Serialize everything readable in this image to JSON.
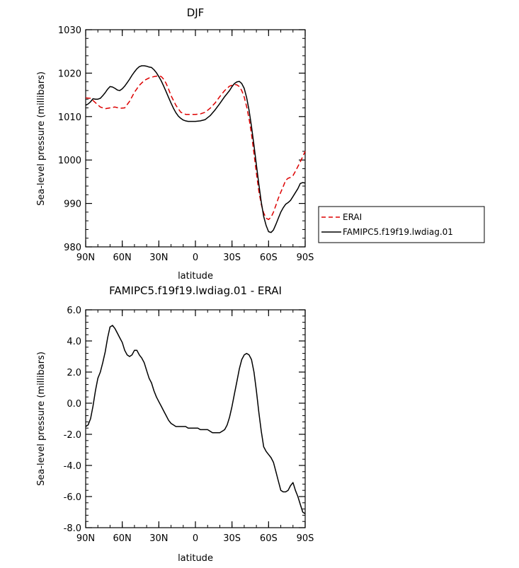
{
  "chart_data": [
    {
      "type": "line",
      "title": "DJF",
      "xlabel": "latitude",
      "ylabel": "Sea-level pressure (millibars)",
      "xlim": [
        90,
        -90
      ],
      "ylim": [
        980,
        1030
      ],
      "x_ticks": [
        90,
        60,
        30,
        0,
        -30,
        -60,
        -90
      ],
      "x_tick_labels": [
        "90N",
        "60N",
        "30N",
        "0",
        "30S",
        "60S",
        "90S"
      ],
      "y_ticks": [
        980,
        990,
        1000,
        1010,
        1020,
        1030
      ],
      "y_tick_labels": [
        "980",
        "990",
        "1000",
        "1010",
        "1020",
        "1030"
      ],
      "legend_position": "right",
      "series": [
        {
          "name": "ERAI",
          "color": "#dd0000",
          "dash": "dashed",
          "x": [
            90,
            86,
            82,
            78,
            74,
            70,
            66,
            62,
            58,
            54,
            50,
            46,
            42,
            38,
            34,
            30,
            28,
            26,
            24,
            22,
            20,
            16,
            12,
            8,
            4,
            0,
            -4,
            -8,
            -12,
            -16,
            -20,
            -24,
            -28,
            -32,
            -34,
            -36,
            -38,
            -40,
            -42,
            -44,
            -46,
            -48,
            -50,
            -52,
            -54,
            -56,
            -58,
            -60,
            -62,
            -64,
            -66,
            -68,
            -70,
            -72,
            -74,
            -76,
            -78,
            -80,
            -82,
            -84,
            -86,
            -88,
            -90
          ],
          "y": [
            1014.3,
            1014.2,
            1013.2,
            1012.2,
            1011.8,
            1012.0,
            1012.2,
            1011.9,
            1012.0,
            1013.5,
            1015.6,
            1017.2,
            1018.3,
            1018.9,
            1019.2,
            1019.4,
            1019.2,
            1018.6,
            1017.6,
            1016.3,
            1014.8,
            1012.6,
            1011.0,
            1010.5,
            1010.5,
            1010.5,
            1010.6,
            1011.0,
            1011.9,
            1013.1,
            1014.6,
            1016.0,
            1017.0,
            1017.4,
            1017.3,
            1016.9,
            1016.0,
            1014.5,
            1012.3,
            1009.5,
            1006.0,
            1001.5,
            997.0,
            992.8,
            989.8,
            987.8,
            986.6,
            986.3,
            986.8,
            988.0,
            989.6,
            991.2,
            992.6,
            993.9,
            995.3,
            995.8,
            996.0,
            996.4,
            997.4,
            998.5,
            999.6,
            1000.8,
            1002.0
          ]
        },
        {
          "name": "FAMIPC5.f19f19.lwdiag.01",
          "color": "#000000",
          "dash": "solid",
          "x": [
            90,
            88,
            86,
            84,
            82,
            80,
            78,
            76,
            74,
            72,
            70,
            68,
            66,
            64,
            62,
            60,
            58,
            56,
            54,
            52,
            50,
            48,
            46,
            44,
            42,
            40,
            38,
            36,
            34,
            32,
            30,
            28,
            26,
            24,
            22,
            20,
            18,
            16,
            14,
            12,
            10,
            8,
            6,
            4,
            2,
            0,
            -4,
            -8,
            -12,
            -16,
            -20,
            -24,
            -28,
            -30,
            -32,
            -34,
            -36,
            -38,
            -40,
            -42,
            -44,
            -46,
            -48,
            -50,
            -52,
            -54,
            -56,
            -58,
            -60,
            -62,
            -64,
            -66,
            -68,
            -70,
            -72,
            -74,
            -76,
            -78,
            -80,
            -82,
            -84,
            -86,
            -88,
            -90
          ],
          "y": [
            1012.6,
            1012.9,
            1013.4,
            1014.1,
            1014.0,
            1014.0,
            1014.2,
            1014.8,
            1015.5,
            1016.3,
            1016.9,
            1016.8,
            1016.5,
            1016.1,
            1016.0,
            1016.4,
            1017.0,
            1017.8,
            1018.6,
            1019.5,
            1020.3,
            1021.0,
            1021.5,
            1021.7,
            1021.7,
            1021.6,
            1021.4,
            1021.3,
            1020.8,
            1020.1,
            1019.2,
            1018.2,
            1017.0,
            1015.7,
            1014.4,
            1013.1,
            1011.9,
            1010.9,
            1010.1,
            1009.6,
            1009.2,
            1009.0,
            1008.9,
            1008.9,
            1008.9,
            1008.9,
            1009.0,
            1009.3,
            1010.2,
            1011.5,
            1013.0,
            1014.6,
            1016.0,
            1016.9,
            1017.6,
            1018.0,
            1018.1,
            1017.6,
            1016.5,
            1014.4,
            1011.4,
            1007.7,
            1003.4,
            998.9,
            994.4,
            990.3,
            987.0,
            984.9,
            983.5,
            983.3,
            983.9,
            985.2,
            986.6,
            988.0,
            989.0,
            989.8,
            990.2,
            990.7,
            991.6,
            992.5,
            993.4,
            994.6,
            994.8,
            994.7
          ]
        }
      ]
    },
    {
      "type": "line",
      "title": "FAMIPC5.f19f19.lwdiag.01 - ERAI",
      "xlabel": "latitude",
      "ylabel": "Sea-level pressure (millibars)",
      "xlim": [
        90,
        -90
      ],
      "ylim": [
        -8.0,
        6.0
      ],
      "x_ticks": [
        90,
        60,
        30,
        0,
        -30,
        -60,
        -90
      ],
      "x_tick_labels": [
        "90N",
        "60N",
        "30N",
        "0",
        "30S",
        "60S",
        "90S"
      ],
      "y_ticks": [
        -8,
        -6,
        -4,
        -2,
        0,
        2,
        4,
        6
      ],
      "y_tick_labels": [
        "-8.0",
        "-6.0",
        "-4.0",
        "-2.0",
        "0.0",
        "2.0",
        "4.0",
        "6.0"
      ],
      "series": [
        {
          "color": "#000000",
          "dash": "solid",
          "x": [
            90,
            88,
            86,
            84,
            82,
            80,
            78,
            76,
            74,
            72,
            70,
            68,
            66,
            64,
            62,
            60,
            58,
            56,
            54,
            52,
            50,
            48,
            46,
            44,
            42,
            40,
            38,
            36,
            34,
            32,
            30,
            28,
            26,
            24,
            22,
            20,
            18,
            16,
            14,
            12,
            10,
            8,
            6,
            4,
            2,
            0,
            -2,
            -4,
            -6,
            -8,
            -10,
            -12,
            -14,
            -16,
            -18,
            -20,
            -22,
            -24,
            -26,
            -28,
            -30,
            -32,
            -34,
            -36,
            -38,
            -40,
            -42,
            -44,
            -46,
            -48,
            -50,
            -52,
            -54,
            -56,
            -58,
            -60,
            -62,
            -64,
            -66,
            -68,
            -70,
            -72,
            -74,
            -76,
            -78,
            -80,
            -82,
            -84,
            -86,
            -88,
            -90
          ],
          "y": [
            -1.5,
            -1.4,
            -1.0,
            -0.2,
            0.8,
            1.6,
            2.0,
            2.6,
            3.3,
            4.2,
            4.9,
            5.0,
            4.8,
            4.5,
            4.2,
            3.9,
            3.4,
            3.1,
            3.0,
            3.1,
            3.4,
            3.4,
            3.1,
            2.9,
            2.6,
            2.1,
            1.6,
            1.3,
            0.8,
            0.4,
            0.1,
            -0.2,
            -0.5,
            -0.8,
            -1.1,
            -1.3,
            -1.4,
            -1.5,
            -1.5,
            -1.5,
            -1.5,
            -1.5,
            -1.6,
            -1.6,
            -1.6,
            -1.6,
            -1.6,
            -1.7,
            -1.7,
            -1.7,
            -1.7,
            -1.8,
            -1.9,
            -1.9,
            -1.9,
            -1.9,
            -1.8,
            -1.7,
            -1.4,
            -0.9,
            -0.2,
            0.6,
            1.4,
            2.2,
            2.8,
            3.1,
            3.2,
            3.1,
            2.8,
            2.0,
            0.8,
            -0.6,
            -1.8,
            -2.8,
            -3.1,
            -3.3,
            -3.5,
            -3.8,
            -4.4,
            -5.0,
            -5.6,
            -5.7,
            -5.7,
            -5.6,
            -5.3,
            -5.1,
            -5.6,
            -6.0,
            -6.5,
            -7.0,
            -7.1
          ]
        }
      ]
    }
  ]
}
